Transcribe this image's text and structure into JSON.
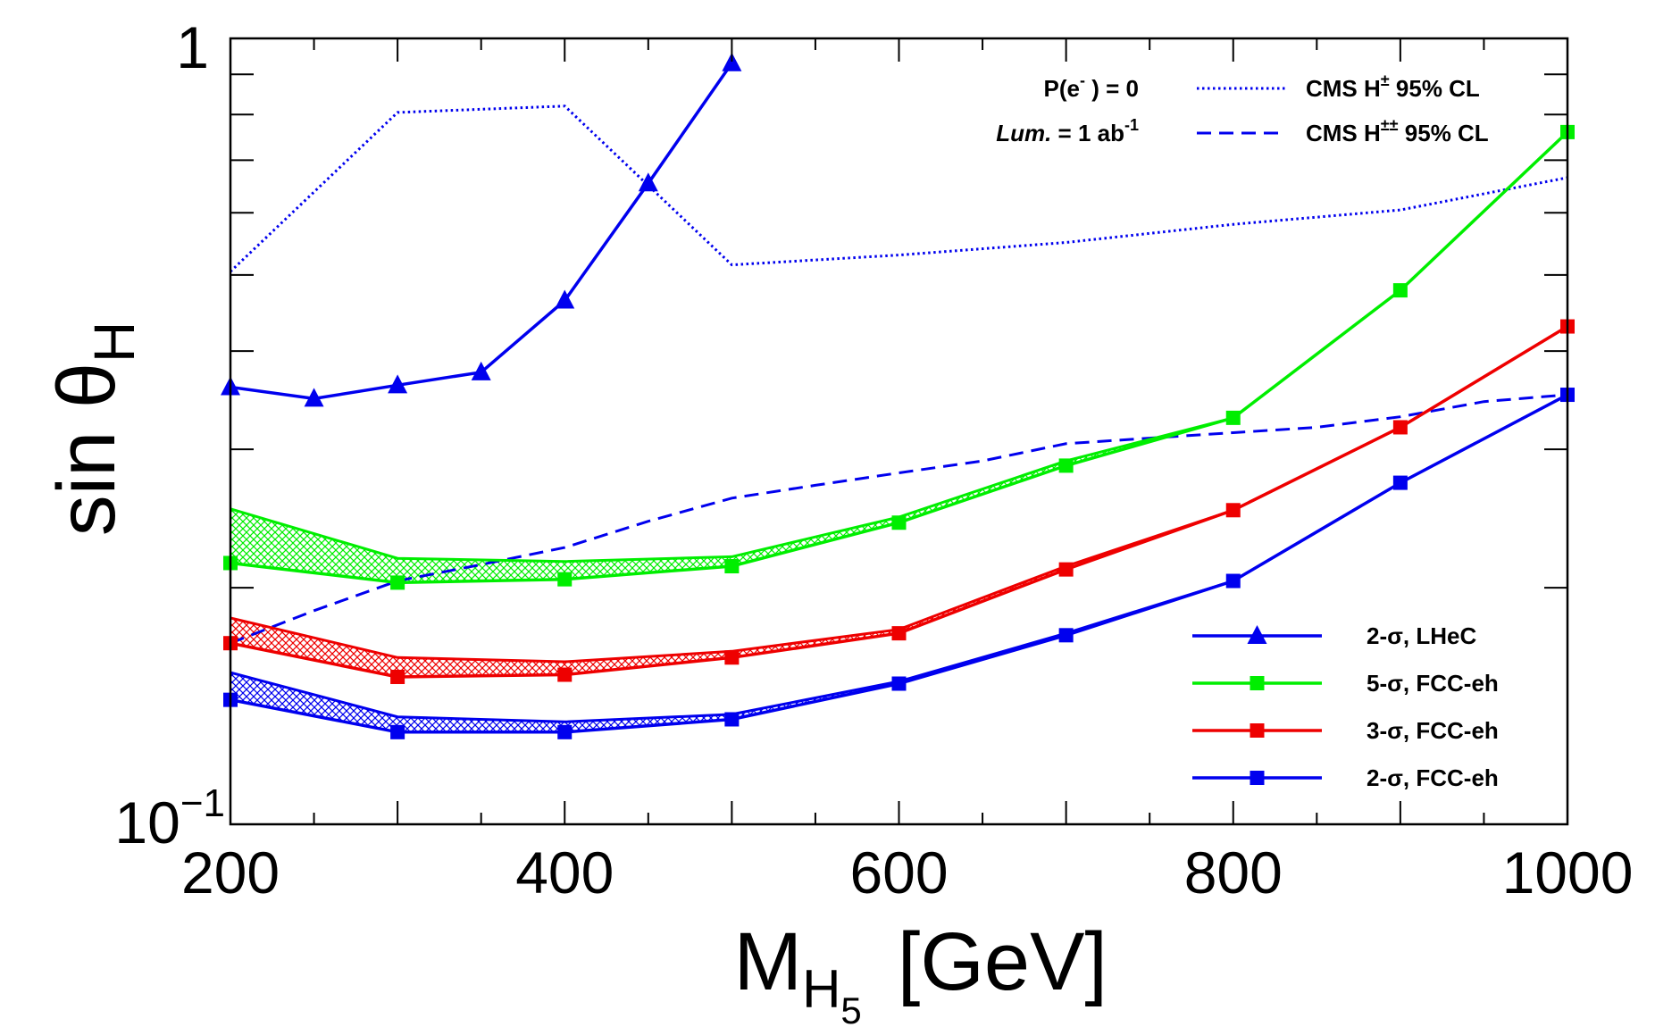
{
  "chart_data": {
    "type": "line",
    "xlabel": "M",
    "xlabel_sub": "H",
    "xlabel_subsub": "5",
    "xlabel_unit": "[GeV]",
    "ylabel": "sin θ",
    "ylabel_sub": "H",
    "x_scale": "linear",
    "y_scale": "log",
    "xlim": [
      200,
      1000
    ],
    "ylim": [
      0.1,
      1
    ],
    "x_ticks": [
      {
        "value": 200,
        "label": "200"
      },
      {
        "value": 400,
        "label": "400"
      },
      {
        "value": 600,
        "label": "600"
      },
      {
        "value": 800,
        "label": "800"
      },
      {
        "value": 1000,
        "label": "1000"
      }
    ],
    "y_tick_labels": {
      "top": "1",
      "bottom_base": "10",
      "bottom_exp": "−1"
    },
    "annotations": {
      "polarization": {
        "main": "P(e",
        "sup": "-",
        "rest": " ) = 0"
      },
      "luminosity": {
        "lum": "Lum.",
        "rest": " = 1 ab",
        "sup": "-1"
      }
    },
    "series": [
      {
        "name": "CMS H± 95% CL",
        "legend_main": "CMS H",
        "legend_sup": "±",
        "legend_rest": " 95% CL",
        "color": "#0000ee",
        "style": "dotted",
        "x": [
          200,
          300,
          400,
          500,
          600,
          700,
          800,
          900,
          1000
        ],
        "y": [
          0.505,
          0.805,
          0.82,
          0.515,
          0.53,
          0.55,
          0.58,
          0.605,
          0.665
        ]
      },
      {
        "name": "CMS H±± 95% CL",
        "legend_main": "CMS H",
        "legend_sup": "±±",
        "legend_rest": " 95% CL",
        "color": "#0000ee",
        "style": "dashed",
        "x": [
          200,
          250,
          300,
          350,
          400,
          450,
          500,
          550,
          600,
          650,
          700,
          750,
          800,
          850,
          900,
          950,
          1000
        ],
        "y": [
          0.17,
          0.187,
          0.204,
          0.214,
          0.225,
          0.243,
          0.26,
          0.27,
          0.28,
          0.29,
          0.305,
          0.31,
          0.315,
          0.32,
          0.33,
          0.345,
          0.352
        ]
      },
      {
        "name": "2-σ, LHeC",
        "legend_main": "2-σ, LHeC",
        "color": "#0000ee",
        "style": "solid",
        "marker": "triangle",
        "x": [
          200,
          250,
          300,
          350,
          400,
          450,
          500
        ],
        "y": [
          0.36,
          0.348,
          0.362,
          0.376,
          0.464,
          0.654,
          0.93
        ]
      },
      {
        "name": "5-σ, FCC-eh",
        "legend_main": "5-σ, FCC-eh",
        "color": "#00ee00",
        "style": "solid",
        "marker": "square",
        "x": [
          200,
          300,
          400,
          500,
          600,
          700,
          800,
          900,
          1000
        ],
        "y": [
          0.215,
          0.203,
          0.205,
          0.213,
          0.242,
          0.286,
          0.329,
          0.478,
          0.76
        ],
        "band_upper": [
          0.252,
          0.218,
          0.216,
          0.219,
          0.246,
          0.29,
          0.329,
          0.478,
          0.76
        ]
      },
      {
        "name": "3-σ, FCC-eh",
        "legend_main": "3-σ, FCC-eh",
        "color": "#ee0000",
        "style": "solid",
        "marker": "square",
        "x": [
          200,
          300,
          400,
          500,
          600,
          700,
          800,
          900,
          1000
        ],
        "y": [
          0.17,
          0.154,
          0.155,
          0.163,
          0.175,
          0.211,
          0.251,
          0.32,
          0.43
        ],
        "band_upper": [
          0.183,
          0.163,
          0.161,
          0.166,
          0.177,
          0.213,
          0.251,
          0.32,
          0.43
        ]
      },
      {
        "name": "2-σ, FCC-eh",
        "legend_main": "2-σ, FCC-eh",
        "color": "#0000ee",
        "style": "solid",
        "marker": "square",
        "x": [
          200,
          300,
          400,
          500,
          600,
          700,
          800,
          900,
          1000
        ],
        "y": [
          0.144,
          0.131,
          0.131,
          0.136,
          0.151,
          0.174,
          0.204,
          0.272,
          0.352
        ],
        "band_upper": [
          0.156,
          0.137,
          0.135,
          0.138,
          0.152,
          0.175,
          0.204,
          0.272,
          0.352
        ]
      }
    ],
    "legend": {
      "placement": "bottom-right and top-right"
    },
    "grid": false
  }
}
